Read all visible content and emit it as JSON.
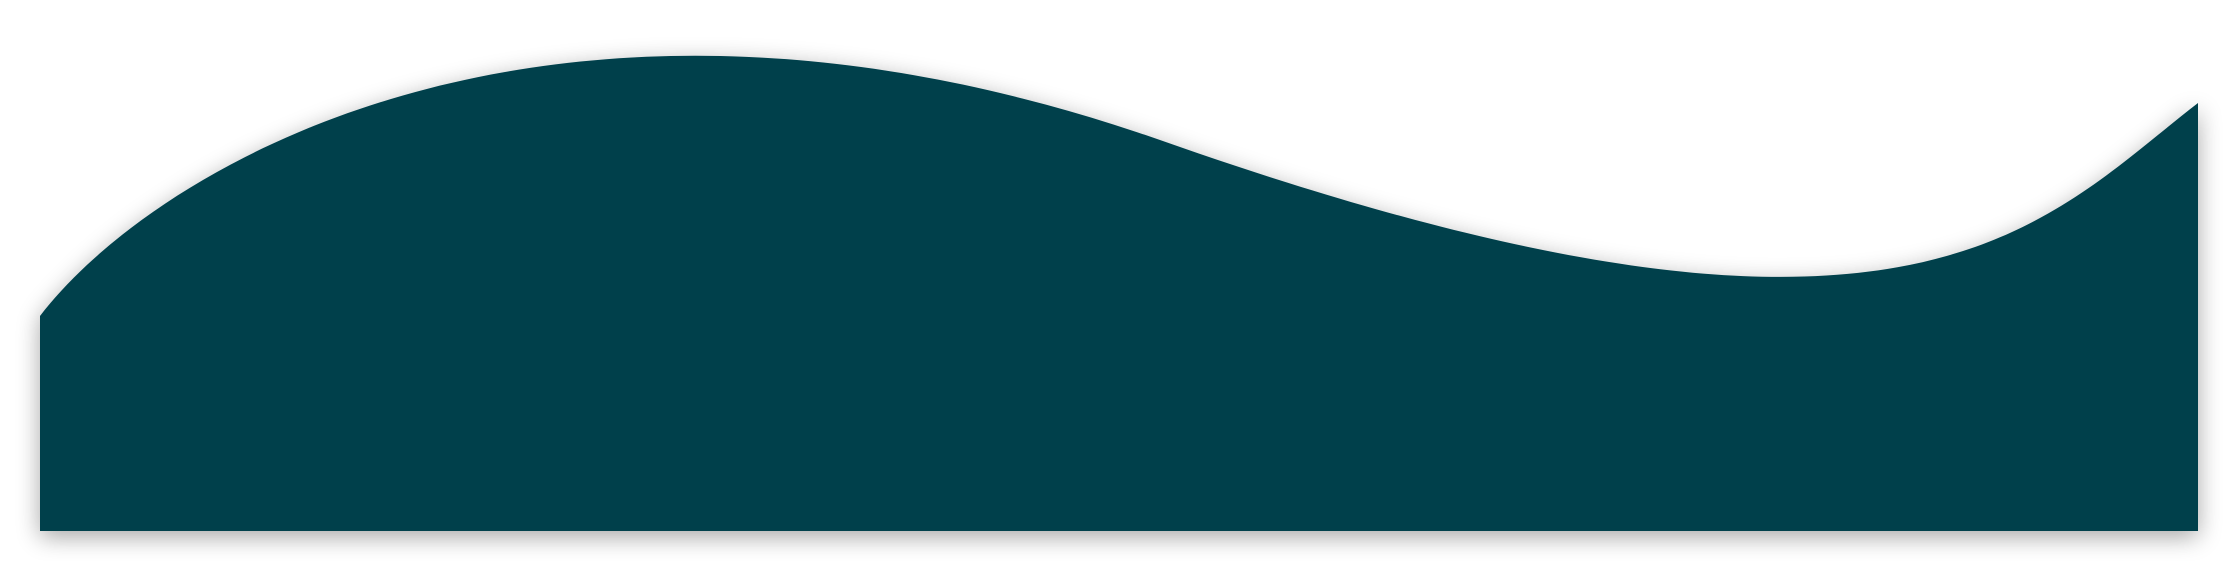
{
  "shape": {
    "fill_color": "#02404c",
    "shadow_color": "#000000",
    "background_color": "#ffffff"
  }
}
